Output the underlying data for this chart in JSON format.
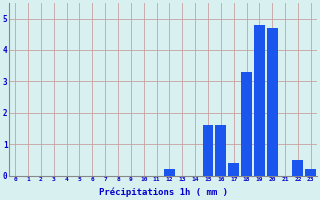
{
  "hours": [
    0,
    1,
    2,
    3,
    4,
    5,
    6,
    7,
    8,
    9,
    10,
    11,
    12,
    13,
    14,
    15,
    16,
    17,
    18,
    19,
    20,
    21,
    22,
    23
  ],
  "values": [
    0,
    0,
    0,
    0,
    0,
    0,
    0,
    0,
    0,
    0,
    0,
    0,
    0.2,
    0,
    0,
    1.6,
    1.6,
    0.4,
    3.3,
    4.8,
    4.7,
    0,
    0.5,
    0.2
  ],
  "bar_color": "#1a55ee",
  "background_color": "#d8f0f0",
  "grid_color": "#c8a0a0",
  "axis_label_color": "#0000cc",
  "xlabel": "Précipitations 1h ( mm )",
  "ylim": [
    0,
    5.5
  ],
  "yticks": [
    0,
    1,
    2,
    3,
    4,
    5
  ],
  "figsize": [
    3.2,
    2.0
  ],
  "dpi": 100
}
